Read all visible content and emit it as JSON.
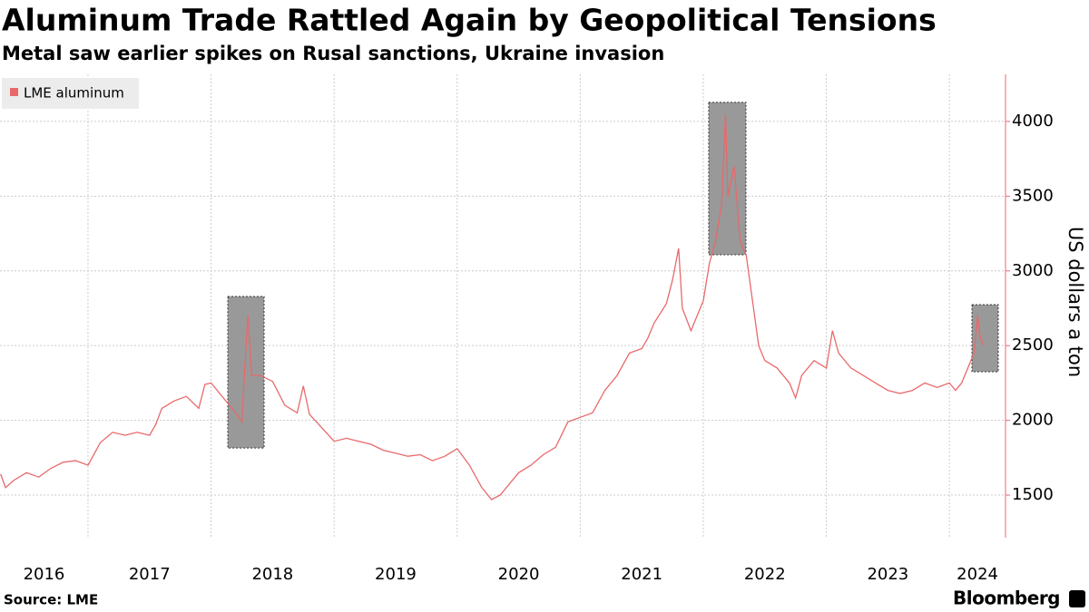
{
  "chart_data": {
    "type": "line",
    "title": "Aluminum Trade Rattled Again by Geopolitical Tensions",
    "subtitle": "Metal saw earlier spikes on Rusal sanctions, Ukraine invasion",
    "y_label": "US dollars a ton",
    "source": "Source: LME",
    "brand": "Bloomberg",
    "legend": "top-left",
    "grid": true,
    "series": [
      {
        "name": "LME aluminum",
        "color": "#e8696b",
        "x": [
          2016.29,
          2016.33,
          2016.4,
          2016.5,
          2016.6,
          2016.7,
          2016.8,
          2016.9,
          2017.0,
          2017.1,
          2017.2,
          2017.3,
          2017.4,
          2017.5,
          2017.55,
          2017.6,
          2017.7,
          2017.8,
          2017.9,
          2017.95,
          2018.0,
          2018.1,
          2018.2,
          2018.25,
          2018.28,
          2018.3,
          2018.33,
          2018.4,
          2018.5,
          2018.6,
          2018.7,
          2018.75,
          2018.8,
          2018.9,
          2019.0,
          2019.1,
          2019.2,
          2019.3,
          2019.4,
          2019.5,
          2019.6,
          2019.7,
          2019.8,
          2019.9,
          2020.0,
          2020.1,
          2020.2,
          2020.28,
          2020.35,
          2020.5,
          2020.6,
          2020.7,
          2020.8,
          2020.9,
          2021.0,
          2021.1,
          2021.2,
          2021.3,
          2021.4,
          2021.5,
          2021.55,
          2021.6,
          2021.7,
          2021.75,
          2021.8,
          2021.83,
          2021.9,
          2022.0,
          2022.05,
          2022.1,
          2022.15,
          2022.18,
          2022.2,
          2022.25,
          2022.3,
          2022.35,
          2022.4,
          2022.45,
          2022.5,
          2022.6,
          2022.7,
          2022.75,
          2022.8,
          2022.9,
          2023.0,
          2023.05,
          2023.1,
          2023.2,
          2023.3,
          2023.4,
          2023.5,
          2023.6,
          2023.7,
          2023.8,
          2023.9,
          2024.0,
          2024.05,
          2024.1,
          2024.15,
          2024.2,
          2024.23,
          2024.25,
          2024.28
        ],
        "values": [
          1640,
          1550,
          1600,
          1650,
          1620,
          1680,
          1720,
          1730,
          1700,
          1850,
          1920,
          1900,
          1920,
          1900,
          1970,
          2080,
          2130,
          2160,
          2080,
          2240,
          2250,
          2150,
          2050,
          1990,
          2430,
          2700,
          2300,
          2300,
          2260,
          2100,
          2050,
          2230,
          2040,
          1950,
          1860,
          1880,
          1860,
          1840,
          1800,
          1780,
          1760,
          1770,
          1730,
          1760,
          1810,
          1700,
          1550,
          1470,
          1500,
          1650,
          1700,
          1770,
          1820,
          1990,
          2020,
          2050,
          2200,
          2300,
          2450,
          2480,
          2550,
          2650,
          2780,
          2940,
          3150,
          2750,
          2600,
          2800,
          3050,
          3200,
          3450,
          4050,
          3500,
          3700,
          3200,
          3100,
          2800,
          2500,
          2400,
          2350,
          2250,
          2150,
          2300,
          2400,
          2350,
          2600,
          2450,
          2350,
          2300,
          2250,
          2200,
          2180,
          2200,
          2250,
          2220,
          2250,
          2200,
          2250,
          2350,
          2450,
          2700,
          2550,
          2500
        ]
      }
    ],
    "highlights": [
      {
        "x": [
          2018.136,
          2018.431
        ],
        "y": [
          1815,
          2829
        ]
      },
      {
        "x": [
          2022.044,
          2022.347
        ],
        "y": [
          3108,
          4128
        ]
      },
      {
        "x": [
          2024.183,
          2024.397
        ],
        "y": [
          2325,
          2774
        ]
      }
    ],
    "xlim": [
      2016.285,
      2024.456
    ],
    "xticks": [
      2017,
      2018,
      2019,
      2020,
      2021,
      2022,
      2023,
      2024
    ],
    "year_labels": [
      "2016",
      "2017",
      "2018",
      "2019",
      "2020",
      "2021",
      "2022",
      "2023",
      "2024"
    ],
    "ylim": [
      1215,
      4315
    ],
    "yticks": [
      1500,
      2000,
      2500,
      3000,
      3500,
      4000
    ]
  }
}
